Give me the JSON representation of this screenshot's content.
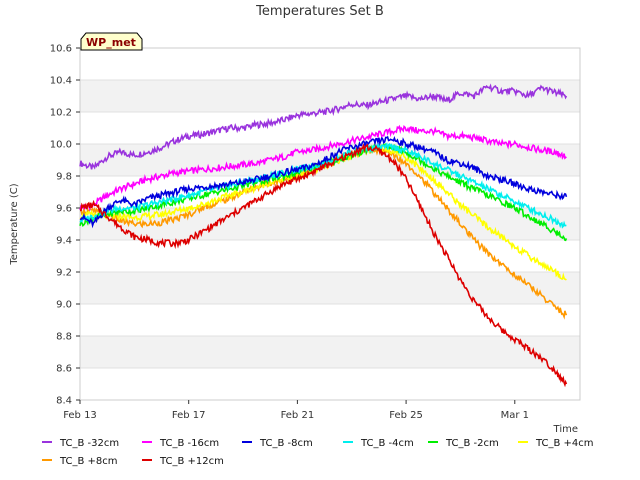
{
  "chart_data": {
    "type": "line",
    "title": "Temperatures Set B",
    "xlabel": "Time",
    "ylabel": "Temperature (C)",
    "badge": "WP_met",
    "xlim": [
      0,
      18.4
    ],
    "ylim": [
      8.4,
      10.6
    ],
    "x_tick_labels": [
      {
        "label": "Feb 13",
        "x": 0
      },
      {
        "label": "Feb 17",
        "x": 4
      },
      {
        "label": "Feb 21",
        "x": 8
      },
      {
        "label": "Feb 25",
        "x": 12
      },
      {
        "label": "Mar 1",
        "x": 16
      }
    ],
    "y_ticks": [
      8.4,
      8.6,
      8.8,
      9.0,
      9.2,
      9.4,
      9.6,
      9.8,
      10.0,
      10.2,
      10.4,
      10.6
    ],
    "y_tick_labels": [
      "8.4",
      "8.6",
      "8.8",
      "9.0",
      "9.2",
      "9.4",
      "9.6",
      "9.8",
      "10.0",
      "10.2",
      "10.4",
      "10.6"
    ],
    "grid": true,
    "legend_position": "bottom",
    "x_unit_note": "days since Feb 13",
    "series": [
      {
        "name": "TC_B -32cm",
        "color": "#9933dd",
        "x": [
          0,
          0.5,
          1,
          1.5,
          2,
          2.5,
          3,
          3.5,
          4,
          4.5,
          5,
          5.5,
          6,
          6.5,
          7,
          7.5,
          8,
          8.5,
          9,
          9.5,
          10,
          10.5,
          11,
          11.5,
          12,
          12.5,
          13,
          13.5,
          14,
          14.5,
          15,
          15.5,
          16,
          16.5,
          17,
          17.5,
          17.9
        ],
        "values": [
          9.88,
          9.85,
          9.92,
          9.95,
          9.93,
          9.95,
          9.98,
          10.02,
          10.05,
          10.06,
          10.08,
          10.1,
          10.1,
          10.12,
          10.13,
          10.15,
          10.18,
          10.19,
          10.2,
          10.22,
          10.25,
          10.24,
          10.26,
          10.28,
          10.3,
          10.28,
          10.3,
          10.27,
          10.32,
          10.3,
          10.36,
          10.33,
          10.33,
          10.3,
          10.35,
          10.32,
          10.3
        ]
      },
      {
        "name": "TC_B -16cm",
        "color": "#ff00ff",
        "x": [
          0,
          0.5,
          1,
          1.5,
          2,
          2.5,
          3,
          3.5,
          4,
          4.5,
          5,
          5.5,
          6,
          6.5,
          7,
          7.5,
          8,
          8.5,
          9,
          9.5,
          10,
          10.5,
          11,
          11.5,
          12,
          12.5,
          13,
          13.5,
          14,
          14.5,
          15,
          15.5,
          16,
          16.5,
          17,
          17.5,
          17.9
        ],
        "values": [
          9.6,
          9.62,
          9.68,
          9.72,
          9.75,
          9.78,
          9.8,
          9.82,
          9.83,
          9.84,
          9.85,
          9.86,
          9.87,
          9.88,
          9.9,
          9.92,
          9.95,
          9.96,
          9.98,
          10.0,
          10.02,
          10.04,
          10.06,
          10.08,
          10.1,
          10.08,
          10.08,
          10.05,
          10.05,
          10.04,
          10.02,
          10.0,
          10.0,
          9.98,
          9.96,
          9.95,
          9.92
        ]
      },
      {
        "name": "TC_B -8cm",
        "color": "#0000dd",
        "x": [
          0,
          0.5,
          1,
          1.5,
          2,
          2.5,
          3,
          3.5,
          4,
          4.5,
          5,
          5.5,
          6,
          6.5,
          7,
          7.5,
          8,
          8.5,
          9,
          9.5,
          10,
          10.5,
          11,
          11.5,
          12,
          12.5,
          13,
          13.5,
          14,
          14.5,
          15,
          15.5,
          16,
          16.5,
          17,
          17.5,
          17.9
        ],
        "values": [
          9.55,
          9.5,
          9.6,
          9.65,
          9.62,
          9.66,
          9.68,
          9.7,
          9.72,
          9.73,
          9.74,
          9.75,
          9.76,
          9.78,
          9.8,
          9.82,
          9.84,
          9.86,
          9.9,
          9.95,
          9.98,
          10.0,
          10.02,
          10.03,
          10.0,
          9.98,
          9.95,
          9.9,
          9.88,
          9.85,
          9.8,
          9.78,
          9.75,
          9.72,
          9.7,
          9.68,
          9.67
        ]
      },
      {
        "name": "TC_B -4cm",
        "color": "#00eeee",
        "x": [
          0,
          0.5,
          1,
          1.5,
          2,
          2.5,
          3,
          3.5,
          4,
          4.5,
          5,
          5.5,
          6,
          6.5,
          7,
          7.5,
          8,
          8.5,
          9,
          9.5,
          10,
          10.5,
          11,
          11.5,
          12,
          12.5,
          13,
          13.5,
          14,
          14.5,
          15,
          15.5,
          16,
          16.5,
          17,
          17.5,
          17.9
        ],
        "values": [
          9.52,
          9.55,
          9.58,
          9.6,
          9.6,
          9.62,
          9.64,
          9.66,
          9.68,
          9.7,
          9.72,
          9.74,
          9.76,
          9.78,
          9.8,
          9.82,
          9.84,
          9.86,
          9.88,
          9.92,
          9.95,
          9.97,
          9.98,
          9.98,
          9.96,
          9.92,
          9.88,
          9.84,
          9.8,
          9.76,
          9.72,
          9.68,
          9.64,
          9.6,
          9.56,
          9.52,
          9.49
        ]
      },
      {
        "name": "TC_B -2cm",
        "color": "#00ee00",
        "x": [
          0,
          0.5,
          1,
          1.5,
          2,
          2.5,
          3,
          3.5,
          4,
          4.5,
          5,
          5.5,
          6,
          6.5,
          7,
          7.5,
          8,
          8.5,
          9,
          9.5,
          10,
          10.5,
          11,
          11.5,
          12,
          12.5,
          13,
          13.5,
          14,
          14.5,
          15,
          15.5,
          16,
          16.5,
          17,
          17.5,
          17.9
        ],
        "values": [
          9.5,
          9.54,
          9.56,
          9.58,
          9.58,
          9.6,
          9.62,
          9.64,
          9.66,
          9.68,
          9.7,
          9.72,
          9.74,
          9.76,
          9.78,
          9.8,
          9.82,
          9.85,
          9.88,
          9.9,
          9.93,
          9.96,
          9.98,
          9.98,
          9.95,
          9.9,
          9.85,
          9.8,
          9.76,
          9.72,
          9.68,
          9.64,
          9.6,
          9.55,
          9.5,
          9.45,
          9.41
        ]
      },
      {
        "name": "TC_B +4cm",
        "color": "#ffff00",
        "x": [
          0,
          0.5,
          1,
          1.5,
          2,
          2.5,
          3,
          3.5,
          4,
          4.5,
          5,
          5.5,
          6,
          6.5,
          7,
          7.5,
          8,
          8.5,
          9,
          9.5,
          10,
          10.5,
          11,
          11.5,
          12,
          12.5,
          13,
          13.5,
          14,
          14.5,
          15,
          15.5,
          16,
          16.5,
          17,
          17.5,
          17.9
        ],
        "values": [
          9.55,
          9.56,
          9.55,
          9.55,
          9.54,
          9.55,
          9.56,
          9.58,
          9.6,
          9.62,
          9.65,
          9.68,
          9.7,
          9.73,
          9.76,
          9.78,
          9.8,
          9.83,
          9.86,
          9.9,
          9.93,
          9.96,
          9.97,
          9.96,
          9.92,
          9.85,
          9.78,
          9.7,
          9.62,
          9.55,
          9.48,
          9.42,
          9.36,
          9.3,
          9.25,
          9.2,
          9.15
        ]
      },
      {
        "name": "TC_B +8cm",
        "color": "#ff9900",
        "x": [
          0,
          0.5,
          1,
          1.5,
          2,
          2.5,
          3,
          3.5,
          4,
          4.5,
          5,
          5.5,
          6,
          6.5,
          7,
          7.5,
          8,
          8.5,
          9,
          9.5,
          10,
          10.5,
          11,
          11.5,
          12,
          12.5,
          13,
          13.5,
          14,
          14.5,
          15,
          15.5,
          16,
          16.5,
          17,
          17.5,
          17.9
        ],
        "values": [
          9.58,
          9.58,
          9.56,
          9.52,
          9.5,
          9.5,
          9.51,
          9.53,
          9.56,
          9.6,
          9.63,
          9.66,
          9.7,
          9.73,
          9.76,
          9.78,
          9.8,
          9.83,
          9.86,
          9.9,
          9.93,
          9.96,
          9.96,
          9.94,
          9.88,
          9.8,
          9.7,
          9.6,
          9.5,
          9.4,
          9.32,
          9.25,
          9.18,
          9.12,
          9.05,
          8.98,
          8.93
        ]
      },
      {
        "name": "TC_B +12cm",
        "color": "#dd0000",
        "x": [
          0,
          0.5,
          1,
          1.5,
          2,
          2.5,
          3,
          3.5,
          4,
          4.5,
          5,
          5.5,
          6,
          6.5,
          7,
          7.5,
          8,
          8.5,
          9,
          9.5,
          10,
          10.5,
          11,
          11.5,
          12,
          12.5,
          13,
          13.5,
          14,
          14.5,
          15,
          15.5,
          16,
          16.5,
          17,
          17.5,
          17.9
        ],
        "values": [
          9.6,
          9.62,
          9.55,
          9.48,
          9.42,
          9.4,
          9.38,
          9.38,
          9.4,
          9.45,
          9.5,
          9.55,
          9.6,
          9.65,
          9.7,
          9.75,
          9.78,
          9.82,
          9.86,
          9.9,
          9.94,
          9.98,
          9.96,
          9.9,
          9.78,
          9.62,
          9.45,
          9.3,
          9.15,
          9.02,
          8.92,
          8.84,
          8.78,
          8.72,
          8.66,
          8.58,
          8.5
        ]
      }
    ]
  }
}
